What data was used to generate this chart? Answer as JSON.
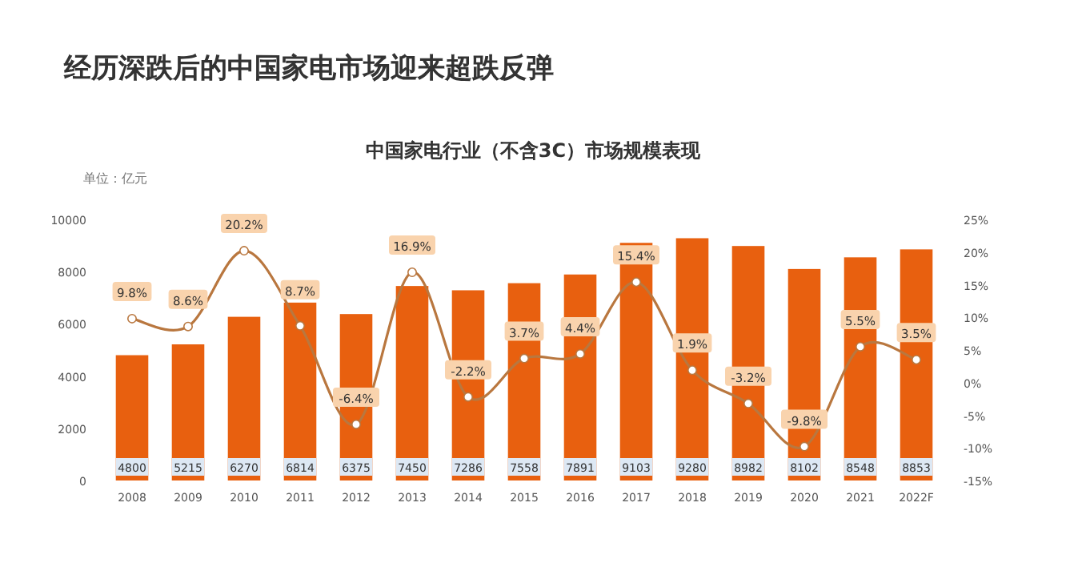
{
  "chart_data": {
    "type": "bar",
    "title": "经历深跌后的中国家电市场迎来超跌反弹",
    "subtitle": "中国家电行业（不含3C）市场规模表现",
    "ylabel": "单位：亿元",
    "categories": [
      "2008",
      "2009",
      "2010",
      "2011",
      "2012",
      "2013",
      "2014",
      "2015",
      "2016",
      "2017",
      "2018",
      "2019",
      "2020",
      "2021",
      "2022F"
    ],
    "series": [
      {
        "color": "#e8600f",
        "values": [
          4800,
          5215,
          6270,
          6814,
          6375,
          7450,
          7286,
          7558,
          7891,
          9103,
          9280,
          8982,
          8102,
          8548,
          8853
        ],
        "value_labels": [
          "4800",
          "5215",
          "6270",
          "6814",
          "6375",
          "7450",
          "7286",
          "7558",
          "7891",
          "9103",
          "9280",
          "8982",
          "8102",
          "8548",
          "8853"
        ]
      },
      {
        "type": "line",
        "axis": "y2",
        "color": "#b9773f",
        "marker": "circle",
        "values": [
          9.8,
          8.6,
          20.2,
          8.7,
          -6.4,
          16.9,
          -2.2,
          3.7,
          4.4,
          15.4,
          1.9,
          -3.2,
          -9.8,
          5.5,
          3.5
        ],
        "value_labels": [
          "9.8%",
          "8.6%",
          "20.2%",
          "8.7%",
          "-6.4%",
          "16.9%",
          "-2.2%",
          "3.7%",
          "4.4%",
          "15.4%",
          "1.9%",
          "-3.2%",
          "-9.8%",
          "5.5%",
          "3.5%"
        ]
      }
    ],
    "ylim": [
      0,
      10000
    ],
    "yticks": [
      0,
      2000,
      4000,
      6000,
      8000,
      10000
    ],
    "y2lim": [
      -15,
      25
    ],
    "y2ticks": [
      {
        "value": -15,
        "label": "-15%"
      },
      {
        "value": -10,
        "label": "-10%"
      },
      {
        "value": -5,
        "label": "-5%"
      },
      {
        "value": 0,
        "label": "0%"
      },
      {
        "value": 5,
        "label": "5%"
      },
      {
        "value": 10,
        "label": "10%"
      },
      {
        "value": 15,
        "label": "15%"
      },
      {
        "value": 20,
        "label": "20%"
      },
      {
        "value": 25,
        "label": "25%"
      }
    ],
    "grid": false
  }
}
